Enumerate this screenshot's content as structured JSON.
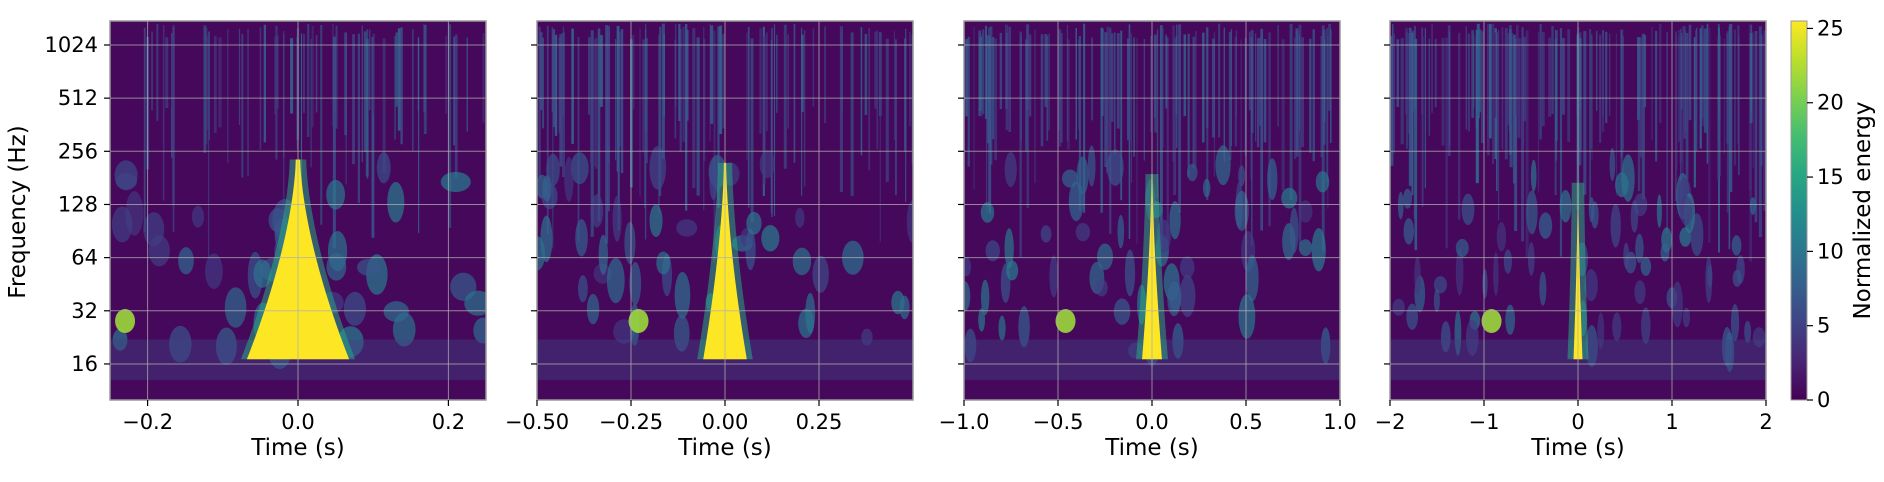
{
  "figure": {
    "ylabel": "Frequency (Hz)",
    "colorbar": {
      "label": "Normalized energy",
      "range": [
        0,
        25.5
      ],
      "ticks": [
        0,
        5,
        10,
        15,
        20,
        25
      ],
      "tick_labels": [
        "0",
        "5",
        "10",
        "15",
        "20",
        "25"
      ],
      "colormap": "viridis"
    }
  },
  "chart_data": [
    {
      "type": "heatmap",
      "xlabel": "Time (s)",
      "ylabel": "Frequency (Hz)",
      "xlim": [
        -0.25,
        0.25
      ],
      "xticks": [
        -0.2,
        0.0,
        0.2
      ],
      "xtick_labels": [
        "−0.2",
        "0.0",
        "0.2"
      ],
      "yscale": "log2",
      "ylim": [
        10,
        1400
      ],
      "yticks": [
        16,
        32,
        64,
        128,
        256,
        512,
        1024
      ],
      "ytick_labels": [
        "16",
        "32",
        "64",
        "128",
        "256",
        "512",
        "1024"
      ],
      "grid": true,
      "event": {
        "time": 0.0,
        "peak_energy": 25.5,
        "freq_range": [
          17,
          230
        ]
      }
    },
    {
      "type": "heatmap",
      "xlabel": "Time (s)",
      "xlim": [
        -0.5,
        0.5
      ],
      "xticks": [
        -0.5,
        -0.25,
        0.0,
        0.25
      ],
      "xtick_labels": [
        "−0.50",
        "−0.25",
        "0.00",
        "0.25"
      ],
      "yscale": "log2",
      "ylim": [
        10,
        1400
      ],
      "yticks": [
        16,
        32,
        64,
        128,
        256,
        512,
        1024
      ],
      "grid": true,
      "event": {
        "time": 0.0,
        "peak_energy": 25.5,
        "freq_range": [
          17,
          220
        ]
      }
    },
    {
      "type": "heatmap",
      "xlabel": "Time (s)",
      "xlim": [
        -1.0,
        1.0
      ],
      "xticks": [
        -1.0,
        -0.5,
        0.0,
        0.5,
        1.0
      ],
      "xtick_labels": [
        "−1.0",
        "−0.5",
        "0.0",
        "0.5",
        "1.0"
      ],
      "yscale": "log2",
      "ylim": [
        10,
        1400
      ],
      "yticks": [
        16,
        32,
        64,
        128,
        256,
        512,
        1024
      ],
      "grid": true,
      "event": {
        "time": 0.0,
        "peak_energy": 25.5,
        "freq_range": [
          17,
          190
        ]
      }
    },
    {
      "type": "heatmap",
      "xlabel": "Time (s)",
      "xlim": [
        -2,
        2
      ],
      "xticks": [
        -2,
        -1,
        0,
        1,
        2
      ],
      "xtick_labels": [
        "−2",
        "−1",
        "0",
        "1",
        "2"
      ],
      "yscale": "log2",
      "ylim": [
        10,
        1400
      ],
      "yticks": [
        16,
        32,
        64,
        128,
        256,
        512,
        1024
      ],
      "grid": true,
      "event": {
        "time": 0.0,
        "peak_energy": 25.5,
        "freq_range": [
          17,
          170
        ]
      }
    }
  ]
}
